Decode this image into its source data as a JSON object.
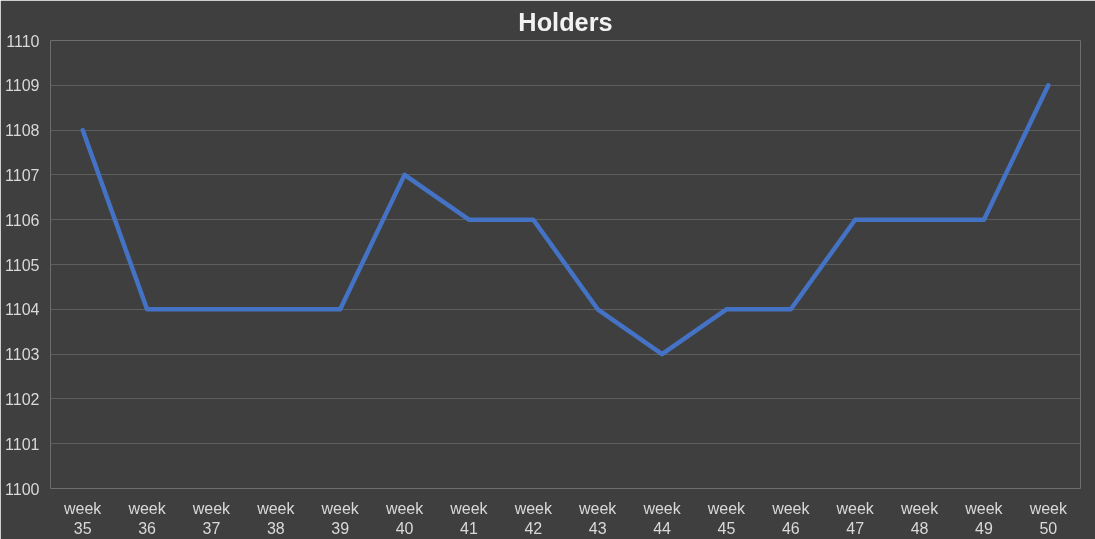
{
  "chart_data": {
    "type": "line",
    "title": "Holders",
    "categories": [
      "week 35",
      "week 36",
      "week 37",
      "week 38",
      "week 39",
      "week 40",
      "week 41",
      "week 42",
      "week 43",
      "week 44",
      "week 45",
      "week 46",
      "week 47",
      "week 48",
      "week 49",
      "week 50"
    ],
    "series": [
      {
        "color": "#4472c4",
        "values": [
          1108,
          1104,
          1104,
          1104,
          1104,
          1107,
          1106,
          1106,
          1104,
          1103,
          1104,
          1104,
          1106,
          1106,
          1106,
          1109
        ]
      }
    ],
    "ylim": [
      1100,
      1110
    ],
    "yticks": [
      1100,
      1101,
      1102,
      1103,
      1104,
      1105,
      1106,
      1107,
      1108,
      1109,
      1110
    ],
    "grid": "y",
    "marker": "none",
    "line_style": "solid"
  }
}
